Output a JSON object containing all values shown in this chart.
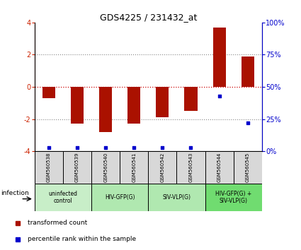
{
  "title": "GDS4225 / 231432_at",
  "samples": [
    "GSM560538",
    "GSM560539",
    "GSM560540",
    "GSM560541",
    "GSM560542",
    "GSM560543",
    "GSM560544",
    "GSM560545"
  ],
  "red_values": [
    -0.7,
    -2.3,
    -2.8,
    -2.3,
    -1.9,
    -1.5,
    3.7,
    1.9
  ],
  "blue_pct": [
    3,
    3,
    3,
    3,
    3,
    3,
    43,
    22
  ],
  "ylim_left": [
    -4,
    4
  ],
  "ylim_right": [
    0,
    100
  ],
  "yticks_left": [
    -4,
    -2,
    0,
    2,
    4
  ],
  "yticks_right": [
    0,
    25,
    50,
    75,
    100
  ],
  "ytick_labels_right": [
    "0%",
    "25%",
    "50%",
    "75%",
    "100%"
  ],
  "groups": [
    {
      "label": "uninfected\ncontrol",
      "start": 0,
      "end": 2,
      "color": "#c8eec8"
    },
    {
      "label": "HIV-GFP(G)",
      "start": 2,
      "end": 4,
      "color": "#b0e8b0"
    },
    {
      "label": "SIV-VLP(G)",
      "start": 4,
      "end": 6,
      "color": "#b0e8b0"
    },
    {
      "label": "HIV-GFP(G) +\nSIV-VLP(G)",
      "start": 6,
      "end": 8,
      "color": "#70dc70"
    }
  ],
  "sample_bg_color": "#d8d8d8",
  "bar_color": "#aa1100",
  "dot_color": "#0000cc",
  "zero_line_color": "#cc0000",
  "dotted_line_color": "#888888",
  "legend_red": "transformed count",
  "legend_blue": "percentile rank within the sample",
  "bar_width": 0.45
}
